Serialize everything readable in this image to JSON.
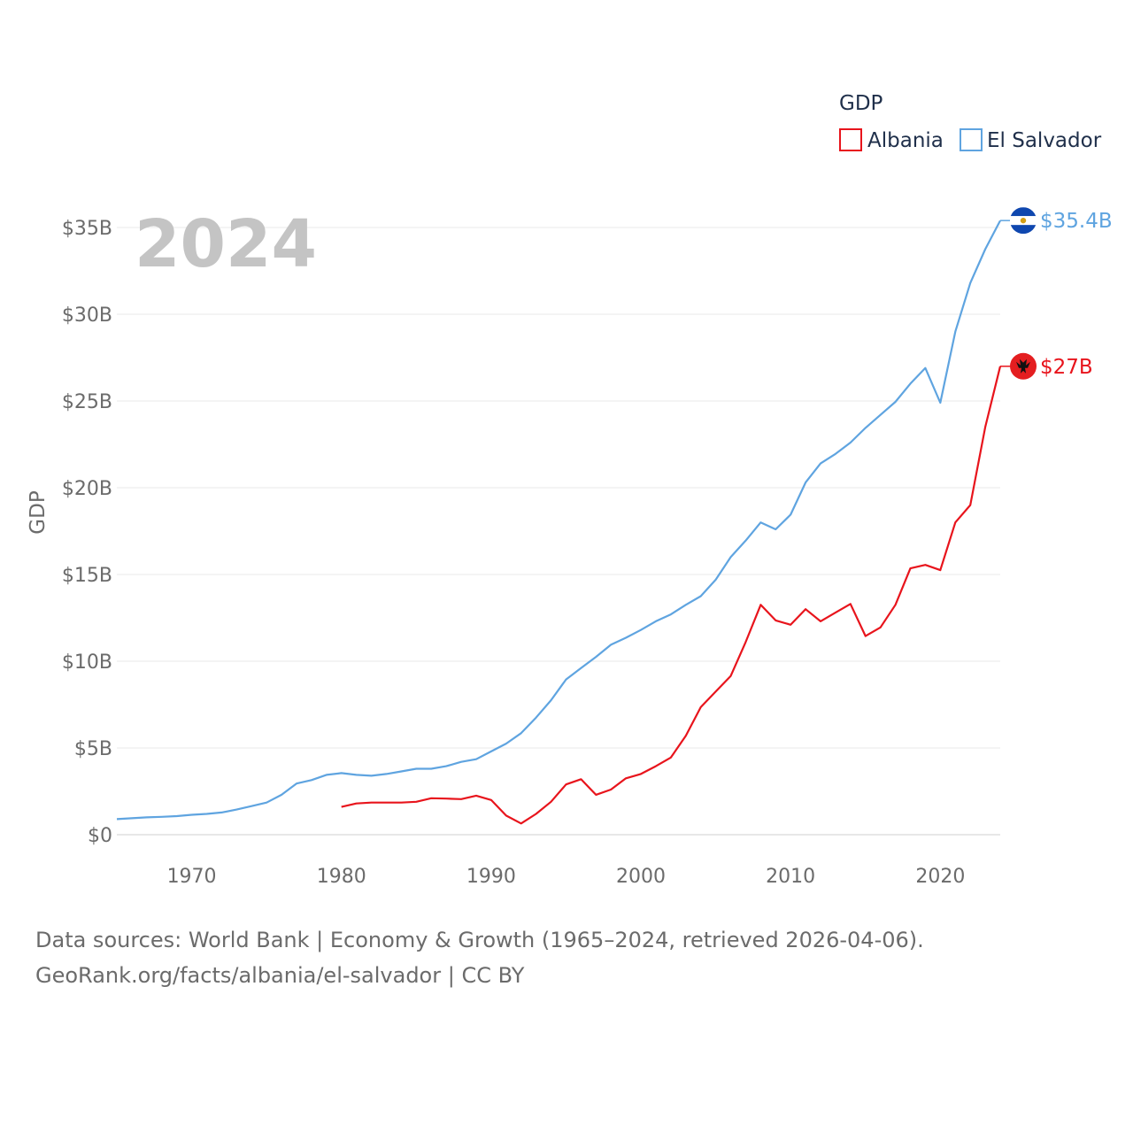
{
  "chart_data": {
    "type": "line",
    "ylabel": "GDP",
    "ylim": [
      0,
      35
    ],
    "xlim": [
      1965,
      2024
    ],
    "year_label": "2024",
    "yticks": [
      {
        "value": 0,
        "label": "$0"
      },
      {
        "value": 5,
        "label": "$5B"
      },
      {
        "value": 10,
        "label": "$10B"
      },
      {
        "value": 15,
        "label": "$15B"
      },
      {
        "value": 20,
        "label": "$20B"
      },
      {
        "value": 25,
        "label": "$25B"
      },
      {
        "value": 30,
        "label": "$30B"
      },
      {
        "value": 35,
        "label": "$35B"
      }
    ],
    "xticks": [
      {
        "value": 1970,
        "label": "1970"
      },
      {
        "value": 1980,
        "label": "1980"
      },
      {
        "value": 1990,
        "label": "1990"
      },
      {
        "value": 2000,
        "label": "2000"
      },
      {
        "value": 2010,
        "label": "2010"
      },
      {
        "value": 2020,
        "label": "2020"
      }
    ],
    "legend": {
      "title": "GDP",
      "position": "top-right"
    },
    "series": [
      {
        "name": "Albania",
        "color": "#e8141c",
        "end_label": "$27B",
        "flag": "albania-flag",
        "x": [
          1980,
          1981,
          1982,
          1983,
          1984,
          1985,
          1986,
          1987,
          1988,
          1989,
          1990,
          1991,
          1992,
          1993,
          1994,
          1995,
          1996,
          1997,
          1998,
          1999,
          2000,
          2001,
          2002,
          2003,
          2004,
          2005,
          2006,
          2007,
          2008,
          2009,
          2010,
          2011,
          2012,
          2013,
          2014,
          2015,
          2016,
          2017,
          2018,
          2019,
          2020,
          2021,
          2022,
          2023,
          2024
        ],
        "values": [
          1.6,
          1.8,
          1.85,
          1.85,
          1.85,
          1.9,
          2.1,
          2.08,
          2.05,
          2.25,
          2.0,
          1.1,
          0.65,
          1.2,
          1.9,
          2.9,
          3.2,
          2.3,
          2.6,
          3.25,
          3.5,
          3.95,
          4.45,
          5.7,
          7.35,
          8.25,
          9.15,
          11.1,
          13.25,
          12.35,
          12.1,
          13.0,
          12.3,
          12.8,
          13.3,
          11.45,
          11.95,
          13.25,
          15.35,
          15.55,
          15.25,
          18.0,
          19.0,
          23.5,
          27.0
        ]
      },
      {
        "name": "El Salvador",
        "color": "#5fa4e0",
        "end_label": "$35.4B",
        "flag": "el-salvador-flag",
        "x": [
          1965,
          1966,
          1967,
          1968,
          1969,
          1970,
          1971,
          1972,
          1973,
          1974,
          1975,
          1976,
          1977,
          1978,
          1979,
          1980,
          1981,
          1982,
          1983,
          1984,
          1985,
          1986,
          1987,
          1988,
          1989,
          1990,
          1991,
          1992,
          1993,
          1994,
          1995,
          1996,
          1997,
          1998,
          1999,
          2000,
          2001,
          2002,
          2003,
          2004,
          2005,
          2006,
          2007,
          2008,
          2009,
          2010,
          2011,
          2012,
          2013,
          2014,
          2015,
          2016,
          2017,
          2018,
          2019,
          2020,
          2021,
          2022,
          2023,
          2024
        ],
        "values": [
          0.9,
          0.95,
          1.0,
          1.03,
          1.07,
          1.15,
          1.2,
          1.28,
          1.45,
          1.65,
          1.85,
          2.3,
          2.95,
          3.15,
          3.45,
          3.55,
          3.45,
          3.4,
          3.5,
          3.65,
          3.8,
          3.8,
          3.95,
          4.2,
          4.35,
          4.8,
          5.25,
          5.85,
          6.75,
          7.75,
          8.95,
          9.6,
          10.25,
          10.95,
          11.35,
          11.8,
          12.3,
          12.7,
          13.25,
          13.75,
          14.7,
          16.0,
          16.95,
          18.0,
          17.6,
          18.45,
          20.3,
          21.4,
          21.95,
          22.6,
          23.45,
          24.2,
          24.95,
          26.0,
          26.9,
          24.9,
          29.0,
          31.8,
          33.75,
          35.4
        ]
      }
    ]
  },
  "source": {
    "line1": "Data sources: World Bank | Economy & Growth (1965–2024, retrieved 2026-04-06).",
    "line2": "GeoRank.org/facts/albania/el-salvador | CC BY"
  }
}
